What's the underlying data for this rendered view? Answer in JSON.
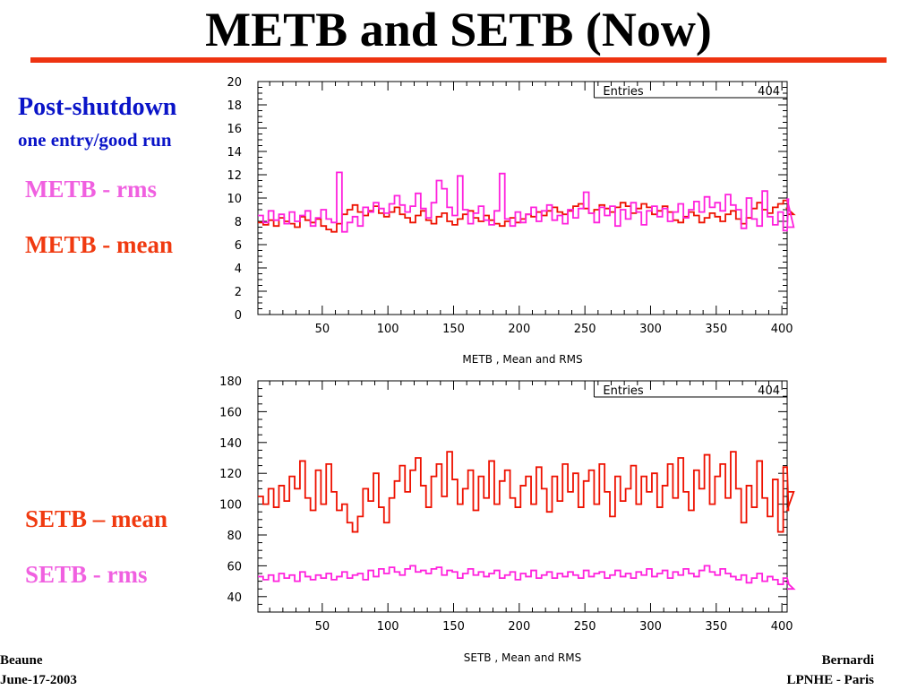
{
  "slide": {
    "title": "METB and SETB (Now)",
    "title_rule_color": "#ee3311",
    "labels": {
      "post_shutdown": "Post-shutdown",
      "one_entry": "one entry/good run",
      "metb_rms": "METB - rms",
      "metb_mean": "METB - mean",
      "setb_mean": "SETB – mean",
      "setb_rms": "SETB - rms"
    },
    "footer": {
      "left_line1": "Beaune",
      "left_line2": "June-17-2003",
      "right_line1": "Bernardi",
      "right_line2": "LPNHE - Paris"
    }
  },
  "chart_data": [
    {
      "type": "line",
      "title": "",
      "xlabel": "METB ,  Mean and RMS",
      "ylabel": "",
      "xlim": [
        1,
        404
      ],
      "ylim": [
        0,
        20
      ],
      "x_ticks": [
        50,
        100,
        150,
        200,
        250,
        300,
        350,
        400
      ],
      "y_ticks": [
        0,
        2,
        4,
        6,
        8,
        10,
        12,
        14,
        16,
        18,
        20
      ],
      "stats_box": {
        "label": "Entries",
        "value": "404"
      },
      "grid": false,
      "x_step": 4,
      "series": [
        {
          "name": "METB - mean",
          "color": "#ee1100",
          "values": [
            7.9,
            7.7,
            8.1,
            7.6,
            8.3,
            8.0,
            7.8,
            7.5,
            8.4,
            8.1,
            7.9,
            8.2,
            7.6,
            7.3,
            7.1,
            7.8,
            8.6,
            9.0,
            9.4,
            8.8,
            8.5,
            8.9,
            9.3,
            8.7,
            8.4,
            8.8,
            9.2,
            8.6,
            8.3,
            7.9,
            8.5,
            8.9,
            8.1,
            7.8,
            8.4,
            8.7,
            8.0,
            7.7,
            8.2,
            8.6,
            8.9,
            8.3,
            8.0,
            8.5,
            8.1,
            7.8,
            7.6,
            8.0,
            8.3,
            7.9,
            8.2,
            8.6,
            8.4,
            8.8,
            8.5,
            8.9,
            9.2,
            8.8,
            8.6,
            8.9,
            9.3,
            9.5,
            9.1,
            8.7,
            9.0,
            9.4,
            9.1,
            8.8,
            9.2,
            9.6,
            9.3,
            8.7,
            9.1,
            9.5,
            9.2,
            8.6,
            8.9,
            9.3,
            8.8,
            8.1,
            7.9,
            8.4,
            8.8,
            8.5,
            7.9,
            8.3,
            8.7,
            8.4,
            8.0,
            8.6,
            8.9,
            8.2,
            7.8,
            8.3,
            9.1,
            9.6,
            9.0,
            8.7,
            9.2,
            9.5,
            9.8,
            9.1,
            8.6
          ]
        },
        {
          "name": "METB - rms",
          "color": "#ff22dd",
          "values": [
            8.5,
            7.9,
            8.9,
            8.1,
            8.6,
            7.8,
            8.8,
            8.0,
            8.5,
            8.9,
            7.6,
            8.3,
            9.0,
            8.2,
            7.9,
            12.2,
            7.1,
            7.9,
            8.4,
            7.6,
            9.2,
            8.8,
            9.6,
            9.1,
            8.7,
            9.5,
            10.2,
            9.4,
            8.8,
            9.3,
            10.4,
            9.1,
            8.3,
            9.6,
            11.5,
            10.8,
            9.2,
            8.5,
            11.9,
            9.0,
            7.8,
            8.7,
            9.3,
            8.1,
            7.7,
            8.9,
            12.1,
            8.2,
            7.6,
            8.8,
            7.9,
            8.6,
            9.2,
            8.0,
            8.9,
            9.4,
            8.1,
            8.5,
            7.8,
            9.0,
            8.3,
            9.1,
            10.5,
            8.7,
            7.9,
            9.2,
            8.5,
            9.3,
            7.6,
            9.0,
            8.2,
            9.6,
            8.8,
            7.7,
            8.9,
            9.3,
            8.4,
            9.1,
            8.0,
            8.8,
            9.5,
            8.3,
            9.0,
            9.7,
            8.8,
            10.1,
            9.2,
            9.6,
            8.9,
            10.3,
            9.4,
            9.0,
            7.4,
            10.0,
            8.2,
            7.6,
            10.6,
            8.4,
            7.7,
            8.8,
            7.2,
            9.9,
            7.5
          ]
        }
      ]
    },
    {
      "type": "line",
      "title": "",
      "xlabel": "SETB , Mean and RMS",
      "ylabel": "",
      "xlim": [
        1,
        404
      ],
      "ylim": [
        30,
        180
      ],
      "x_ticks": [
        50,
        100,
        150,
        200,
        250,
        300,
        350,
        400
      ],
      "y_ticks": [
        40,
        60,
        80,
        100,
        120,
        140,
        160,
        180
      ],
      "stats_box": {
        "label": "Entries",
        "value": "404"
      },
      "grid": false,
      "x_step": 4,
      "series": [
        {
          "name": "SETB – mean",
          "color": "#ee1100",
          "values": [
            105,
            100,
            110,
            98,
            112,
            102,
            118,
            110,
            128,
            104,
            96,
            122,
            100,
            126,
            108,
            96,
            100,
            88,
            82,
            92,
            110,
            102,
            120,
            98,
            88,
            104,
            115,
            125,
            108,
            122,
            130,
            112,
            98,
            118,
            126,
            105,
            134,
            116,
            100,
            110,
            122,
            96,
            118,
            104,
            128,
            100,
            115,
            122,
            104,
            98,
            112,
            118,
            100,
            124,
            110,
            95,
            118,
            102,
            126,
            108,
            120,
            98,
            115,
            122,
            100,
            126,
            108,
            92,
            118,
            102,
            110,
            125,
            100,
            118,
            108,
            120,
            98,
            112,
            126,
            104,
            130,
            108,
            96,
            122,
            110,
            132,
            100,
            118,
            126,
            104,
            134,
            110,
            88,
            112,
            98,
            128,
            104,
            92,
            116,
            82,
            124,
            96,
            108
          ]
        },
        {
          "name": "SETB - rms",
          "color": "#ff22dd",
          "values": [
            53,
            51,
            54,
            50,
            55,
            52,
            54,
            50,
            56,
            53,
            51,
            54,
            52,
            55,
            51,
            53,
            56,
            52,
            54,
            55,
            51,
            57,
            53,
            58,
            55,
            59,
            56,
            54,
            58,
            60,
            56,
            57,
            55,
            58,
            59,
            54,
            57,
            56,
            52,
            55,
            58,
            54,
            56,
            53,
            55,
            57,
            52,
            54,
            56,
            51,
            55,
            53,
            57,
            52,
            54,
            56,
            52,
            55,
            53,
            56,
            54,
            52,
            57,
            53,
            55,
            56,
            52,
            54,
            57,
            53,
            55,
            52,
            56,
            54,
            58,
            53,
            55,
            57,
            52,
            56,
            54,
            58,
            55,
            53,
            57,
            60,
            56,
            54,
            58,
            55,
            53,
            51,
            54,
            49,
            52,
            55,
            50,
            53,
            51,
            48,
            52,
            49,
            45
          ]
        }
      ]
    }
  ]
}
